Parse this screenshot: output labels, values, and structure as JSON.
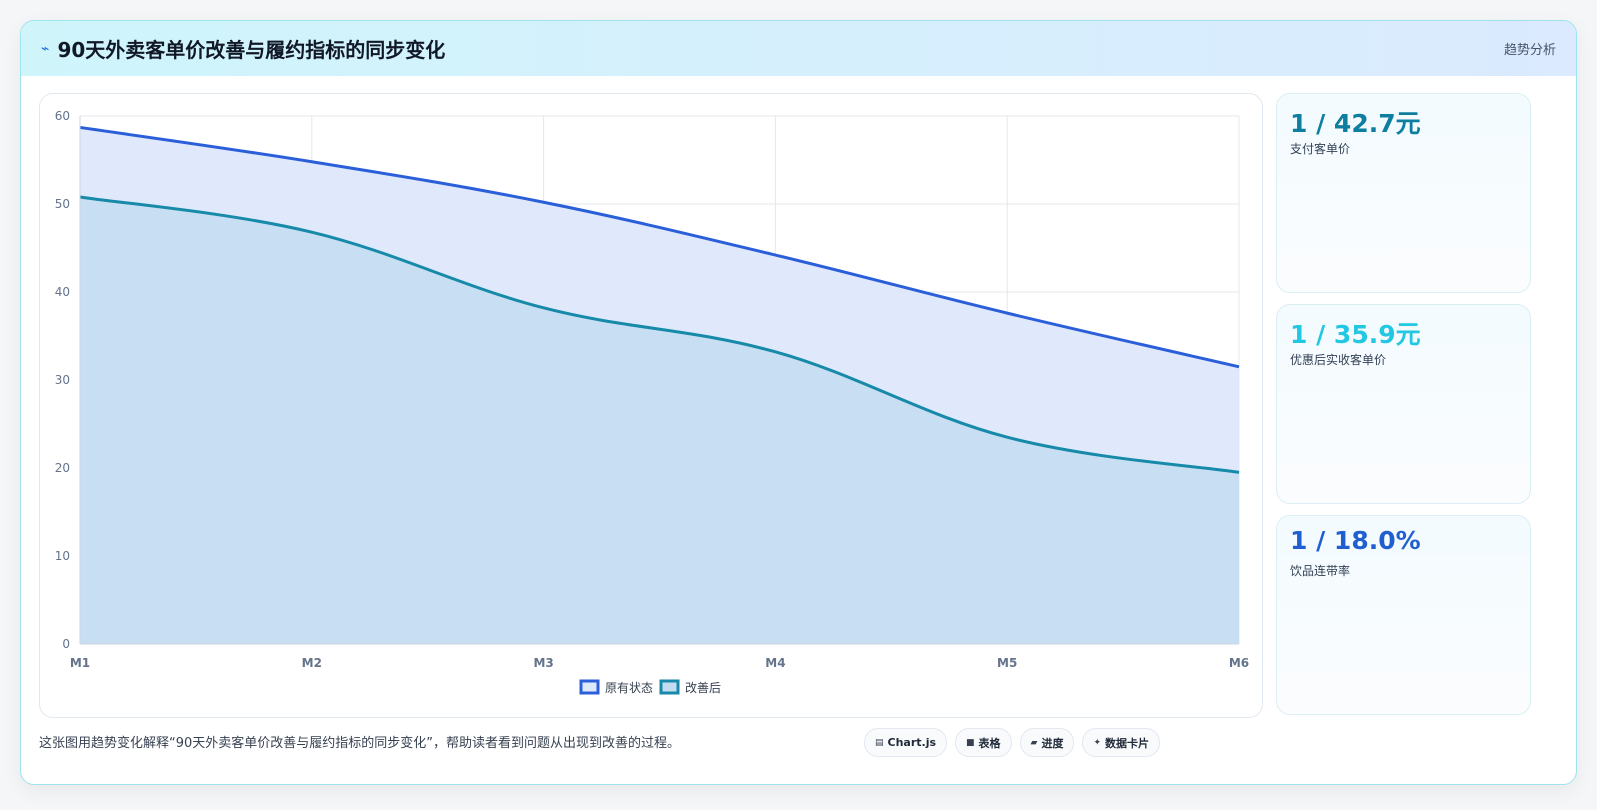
{
  "header": {
    "icon": "lightning-icon",
    "title": "90天外卖客单价改善与履约指标的同步变化",
    "badge": "趋势分析"
  },
  "kpis": [
    {
      "value": "1 / 42.7元",
      "label": "支付客单价",
      "color": "#0e7fa0"
    },
    {
      "value": "1 / 35.9元",
      "label": "优惠后实收客单价",
      "color": "#22c7e2"
    },
    {
      "value": "1 / 18.0%",
      "label": "饮品连带率",
      "color": "#1f5fd0"
    }
  ],
  "footer": {
    "description": "这张图用趋势变化解释“90天外卖客单价改善与履约指标的同步变化”，帮助读者看到问题从出现到改善的过程。",
    "chips": [
      {
        "icon": "chart-icon",
        "label": "Chart.js"
      },
      {
        "icon": "table-icon",
        "label": "表格"
      },
      {
        "icon": "progress-icon",
        "label": "进度"
      },
      {
        "icon": "sparkle-icon",
        "label": "数据卡片"
      }
    ]
  },
  "chart_data": {
    "type": "area",
    "categories": [
      "M1",
      "M2",
      "M3",
      "M4",
      "M5",
      "M6"
    ],
    "series": [
      {
        "name": "原有状态",
        "values": [
          58.7,
          54.8,
          50.2,
          44.2,
          37.6,
          31.5
        ],
        "color": "#2b5fd9",
        "fill": "#dde8fb"
      },
      {
        "name": "改善后",
        "values": [
          50.8,
          46.8,
          38.2,
          33.2,
          23.5,
          19.5
        ],
        "color": "#168aa8",
        "fill": "#c4dcf1"
      }
    ],
    "ylim": [
      0,
      60
    ],
    "yticks": [
      0,
      10,
      20,
      30,
      40,
      50,
      60
    ],
    "grid": true,
    "legend": "bottom"
  }
}
